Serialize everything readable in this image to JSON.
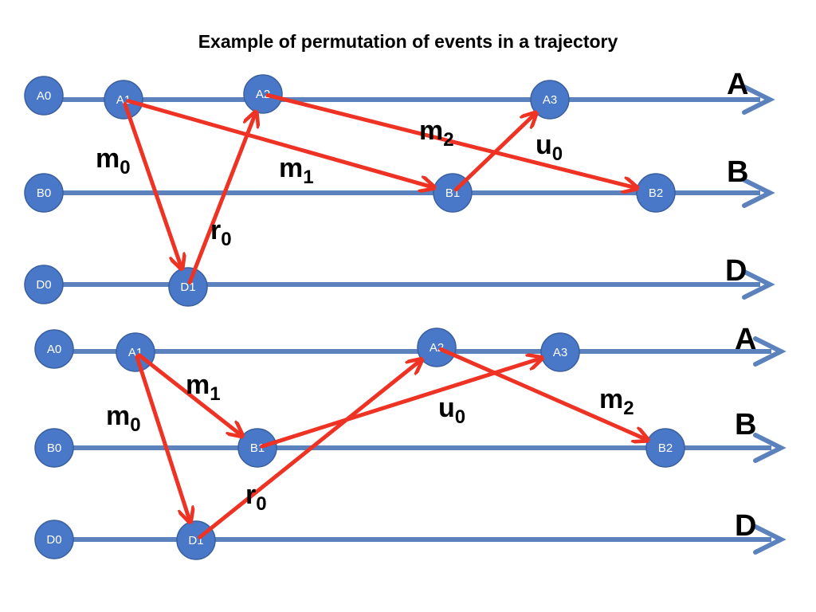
{
  "title": "Example of permutation of events in a trajectory",
  "colors": {
    "timeline": "#5b82bd",
    "message": "#ee3224",
    "node_fill": "#4a78c8",
    "node_stroke": "#3a5f9e",
    "node_text": "#ffffff"
  },
  "processes": [
    "A",
    "B",
    "D"
  ],
  "diagrams": [
    {
      "nodes": {
        "A0": {
          "label": "A0"
        },
        "A1": {
          "label": "A1"
        },
        "A2": {
          "label": "A2"
        },
        "A3": {
          "label": "A3"
        },
        "B0": {
          "label": "B0"
        },
        "B1": {
          "label": "B1"
        },
        "B2": {
          "label": "B2"
        },
        "D0": {
          "label": "D0"
        },
        "D1": {
          "label": "D1"
        }
      },
      "messages": [
        {
          "from": "A1",
          "to": "D1",
          "label": "m",
          "sub": "0"
        },
        {
          "from": "A1",
          "to": "B1",
          "label": "m",
          "sub": "1"
        },
        {
          "from": "A2",
          "to": "B2",
          "label": "m",
          "sub": "2"
        },
        {
          "from": "D1",
          "to": "A2",
          "label": "r",
          "sub": "0"
        },
        {
          "from": "B1",
          "to": "A3",
          "label": "u",
          "sub": "0"
        }
      ]
    },
    {
      "nodes": {
        "A0": {
          "label": "A0"
        },
        "A1": {
          "label": "A1"
        },
        "A2": {
          "label": "A2"
        },
        "A3": {
          "label": "A3"
        },
        "B0": {
          "label": "B0"
        },
        "B1": {
          "label": "B1"
        },
        "B2": {
          "label": "B2"
        },
        "D0": {
          "label": "D0"
        },
        "D1": {
          "label": "D1"
        }
      },
      "messages": [
        {
          "from": "A1",
          "to": "D1",
          "label": "m",
          "sub": "0"
        },
        {
          "from": "A1",
          "to": "B1",
          "label": "m",
          "sub": "1"
        },
        {
          "from": "A2",
          "to": "B2",
          "label": "m",
          "sub": "2"
        },
        {
          "from": "D1",
          "to": "A2",
          "label": "r",
          "sub": "0"
        },
        {
          "from": "B1",
          "to": "A3",
          "label": "u",
          "sub": "0"
        }
      ]
    }
  ]
}
